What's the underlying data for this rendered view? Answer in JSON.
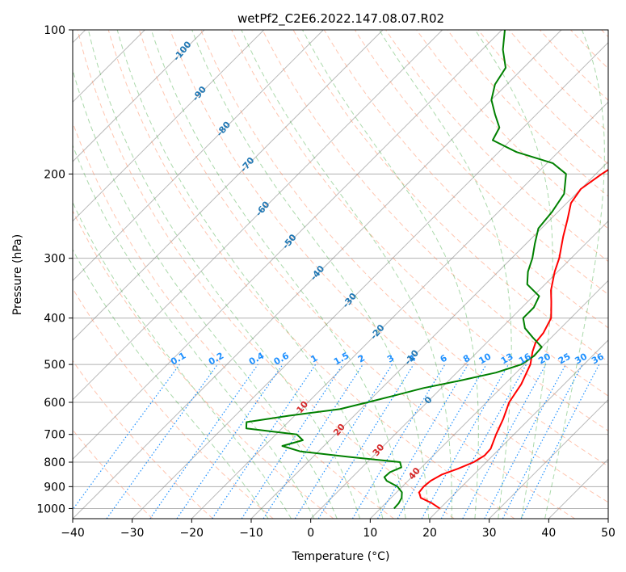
{
  "chart_data": {
    "type": "skew-t log-p",
    "title": "wetPf2_C2E6.2022.147.08.07.R02",
    "xlabel": "Temperature (°C)",
    "ylabel": "Pressure (hPa)",
    "xlim": [
      -40,
      50
    ],
    "ylim_hpa": [
      1050,
      100
    ],
    "x_ticks": [
      -40,
      -30,
      -20,
      -10,
      0,
      10,
      20,
      30,
      40,
      50
    ],
    "x_tick_labels": [
      "−40",
      "−30",
      "−20",
      "−10",
      "0",
      "10",
      "20",
      "30",
      "40",
      "50"
    ],
    "y_ticks": [
      1000,
      900,
      800,
      700,
      600,
      500,
      400,
      300,
      200,
      100
    ],
    "y_tick_labels": [
      "1000",
      "900",
      "800",
      "700",
      "600",
      "500",
      "400",
      "300",
      "200",
      "100"
    ],
    "grid": true,
    "series": [
      {
        "name": "Temperature",
        "color": "#ff0000",
        "points": [
          [
            1000,
            20.0
          ],
          [
            975,
            17.8
          ],
          [
            950,
            15.0
          ],
          [
            925,
            13.8
          ],
          [
            900,
            13.6
          ],
          [
            875,
            13.8
          ],
          [
            850,
            14.6
          ],
          [
            825,
            16.4
          ],
          [
            800,
            17.9
          ],
          [
            775,
            18.6
          ],
          [
            750,
            18.5
          ],
          [
            700,
            17.0
          ],
          [
            650,
            15.6
          ],
          [
            600,
            13.8
          ],
          [
            550,
            12.8
          ],
          [
            500,
            11.0
          ],
          [
            470,
            9.2
          ],
          [
            450,
            8.2
          ],
          [
            430,
            7.9
          ],
          [
            400,
            6.7
          ],
          [
            370,
            4.0
          ],
          [
            350,
            2.0
          ],
          [
            320,
            -0.5
          ],
          [
            300,
            -2.0
          ],
          [
            270,
            -5.0
          ],
          [
            250,
            -7.0
          ],
          [
            230,
            -9.3
          ],
          [
            215,
            -10.0
          ],
          [
            200,
            -9.0
          ],
          [
            185,
            -7.5
          ],
          [
            170,
            -3.2
          ],
          [
            160,
            -5.7
          ],
          [
            150,
            -6.5
          ],
          [
            140,
            -7.0
          ],
          [
            130,
            -7.6
          ],
          [
            120,
            -9.0
          ],
          [
            110,
            -10.5
          ],
          [
            100,
            -11.5
          ]
        ]
      },
      {
        "name": "Dewpoint",
        "color": "#008000",
        "points": [
          [
            1000,
            12.3
          ],
          [
            975,
            12.2
          ],
          [
            950,
            11.8
          ],
          [
            925,
            10.9
          ],
          [
            900,
            9.2
          ],
          [
            875,
            6.4
          ],
          [
            860,
            5.4
          ],
          [
            840,
            5.5
          ],
          [
            820,
            6.6
          ],
          [
            800,
            5.5
          ],
          [
            780,
            -4.0
          ],
          [
            760,
            -13.0
          ],
          [
            740,
            -17.0
          ],
          [
            720,
            -14.5
          ],
          [
            700,
            -16.5
          ],
          [
            680,
            -26.0
          ],
          [
            660,
            -27.0
          ],
          [
            640,
            -21.0
          ],
          [
            620,
            -13.5
          ],
          [
            600,
            -10.0
          ],
          [
            580,
            -6.5
          ],
          [
            560,
            -3.0
          ],
          [
            540,
            2.0
          ],
          [
            520,
            6.6
          ],
          [
            500,
            9.5
          ],
          [
            480,
            10.2
          ],
          [
            460,
            10.0
          ],
          [
            440,
            7.0
          ],
          [
            420,
            4.0
          ],
          [
            400,
            2.0
          ],
          [
            380,
            2.0
          ],
          [
            360,
            1.0
          ],
          [
            340,
            -3.0
          ],
          [
            320,
            -5.0
          ],
          [
            300,
            -6.5
          ],
          [
            280,
            -8.5
          ],
          [
            260,
            -10.5
          ],
          [
            240,
            -11.0
          ],
          [
            220,
            -12.0
          ],
          [
            200,
            -15.0
          ],
          [
            190,
            -19.0
          ],
          [
            180,
            -27.0
          ],
          [
            170,
            -33.0
          ],
          [
            160,
            -34.0
          ],
          [
            150,
            -37.0
          ],
          [
            140,
            -40.0
          ],
          [
            130,
            -42.0
          ],
          [
            120,
            -43.0
          ],
          [
            110,
            -46.5
          ],
          [
            100,
            -49.5
          ]
        ]
      }
    ],
    "dry_adiabat_labels": [
      "-100",
      "-90",
      "-80",
      "-70",
      "-60",
      "-50",
      "-40",
      "-30",
      "-20",
      "-10",
      "0"
    ],
    "moist_adiabat_labels": [
      "10",
      "20",
      "30",
      "40"
    ],
    "mixing_ratio_labels": [
      "0.1",
      "0.2",
      "0.4",
      "0.6",
      "1",
      "1.5",
      "2",
      "3",
      "4",
      "6",
      "8",
      "10",
      "13",
      "16",
      "20",
      "25",
      "30",
      "36"
    ],
    "mixing_ratio_values": [
      0.1,
      0.2,
      0.4,
      0.6,
      1,
      1.5,
      2,
      3,
      4,
      6,
      8,
      10,
      13,
      16,
      20,
      25,
      30,
      36
    ],
    "colors": {
      "dry_adiabat": "#ff7f50",
      "moist_adiabat": "#2ca02c",
      "mixing_ratio": "#1e90ff",
      "isotherm": "#808080",
      "dry_label": "#1f77b4",
      "moist_label": "#d62728",
      "zero_label": "#808080"
    }
  }
}
